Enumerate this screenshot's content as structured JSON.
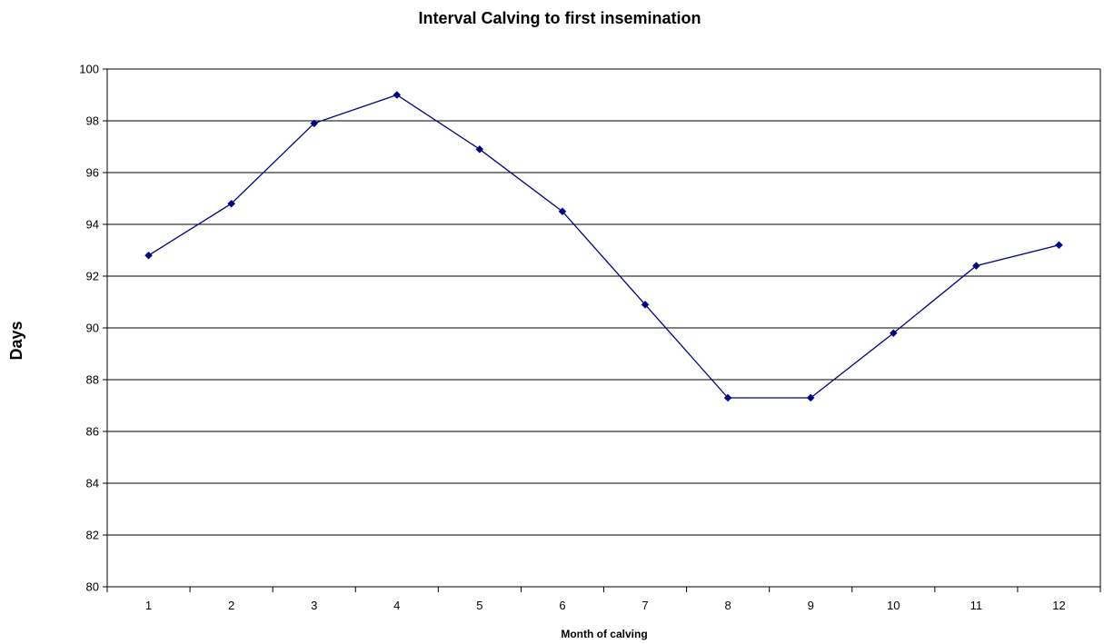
{
  "chart_data": {
    "type": "line",
    "title": "Interval Calving to first insemination",
    "xlabel": "Month of calving",
    "ylabel": "Days",
    "categories": [
      "1",
      "2",
      "3",
      "4",
      "5",
      "6",
      "7",
      "8",
      "9",
      "10",
      "11",
      "12"
    ],
    "series": [
      {
        "values": [
          92.8,
          94.8,
          97.9,
          99.0,
          96.9,
          94.5,
          90.9,
          87.3,
          87.3,
          89.8,
          92.4,
          93.2
        ]
      }
    ],
    "ylim": [
      80,
      100
    ],
    "yticks": [
      80,
      82,
      84,
      86,
      88,
      90,
      92,
      94,
      96,
      98,
      100
    ],
    "grid": "horizontal",
    "line_color": "#000080",
    "marker": "diamond"
  }
}
